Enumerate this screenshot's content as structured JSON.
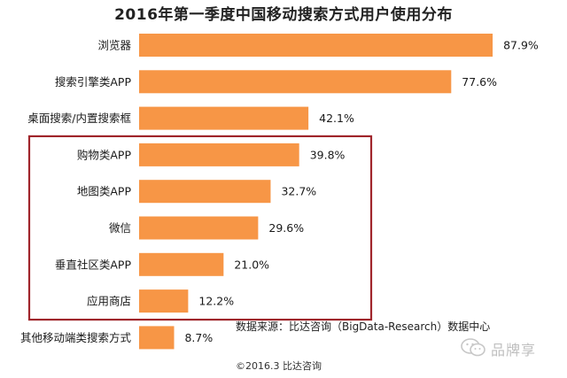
{
  "chart_data": {
    "type": "bar",
    "orientation": "horizontal",
    "title": "2016年第一季度中国移动搜索方式用户使用分布",
    "categories": [
      "浏览器",
      "搜索引擎类APP",
      "桌面搜索/内置搜索框",
      "购物类APP",
      "地图类APP",
      "微信",
      "垂直社区类APP",
      "应用商店",
      "其他移动端类搜索方式"
    ],
    "values": [
      87.9,
      77.6,
      42.1,
      39.8,
      32.7,
      29.6,
      21.0,
      12.2,
      8.7
    ],
    "value_labels": [
      "87.9%",
      "77.6%",
      "42.1%",
      "39.8%",
      "32.7%",
      "29.6%",
      "21.0%",
      "12.2%",
      "8.7%"
    ],
    "unit": "%",
    "xlim": [
      0,
      100
    ],
    "grid": false,
    "legend": "none",
    "highlighted_categories": [
      "购物类APP",
      "地图类APP",
      "微信",
      "垂直社区类APP",
      "应用商店"
    ],
    "bar_color": "#f79646",
    "highlight_box_color": "#a0262c"
  },
  "source_note": "数据来源：比达咨询（BigData-Research）数据中心",
  "copyright": "©2016.3  比达咨询",
  "watermark": "品牌享"
}
